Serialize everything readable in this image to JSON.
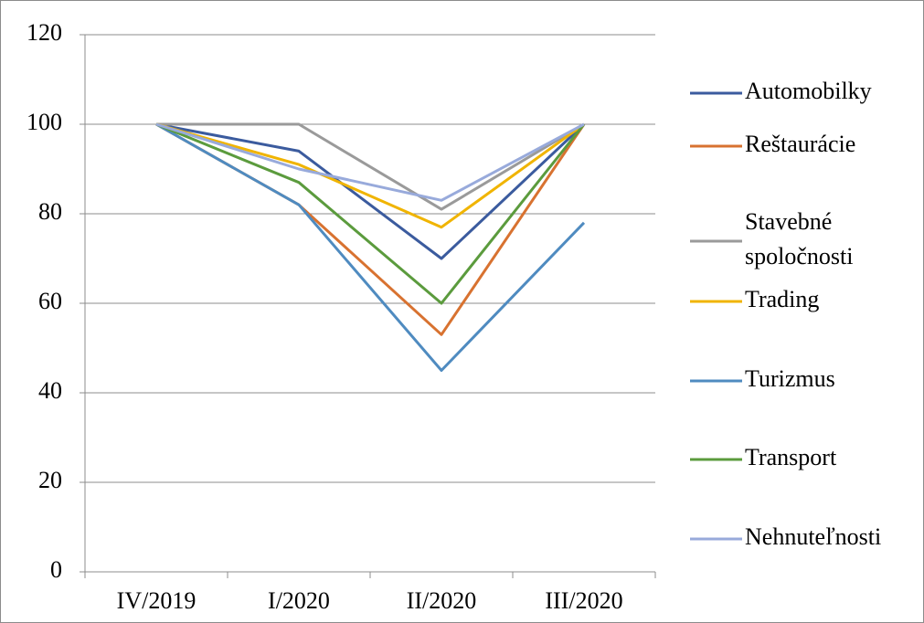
{
  "chart_data": {
    "type": "line",
    "categories": [
      "IV/2019",
      "I/2020",
      "II/2020",
      "III/2020"
    ],
    "series": [
      {
        "name": "Automobilky",
        "color": "#3b5b9e",
        "values": [
          100,
          94,
          70,
          100
        ]
      },
      {
        "name": "Reštaurácie",
        "color": "#d87230",
        "values": [
          100,
          82,
          53,
          100
        ]
      },
      {
        "name": "Stavebné spoločnosti",
        "color": "#9a9a9a",
        "values": [
          100,
          100,
          81,
          100
        ]
      },
      {
        "name": "Trading",
        "color": "#f0b400",
        "values": [
          100,
          91,
          77,
          100
        ]
      },
      {
        "name": "Turizmus",
        "color": "#4f8bc0",
        "values": [
          100,
          82,
          45,
          78
        ]
      },
      {
        "name": "Transport",
        "color": "#5b9b3d",
        "values": [
          100,
          87,
          60,
          100
        ]
      },
      {
        "name": "Nehnuteľnosti",
        "color": "#98aadb",
        "values": [
          100,
          90,
          83,
          100
        ]
      }
    ],
    "ylim": [
      0,
      120
    ],
    "yticks": [
      0,
      20,
      40,
      60,
      80,
      100,
      120
    ],
    "grid": true,
    "legend": "right"
  }
}
